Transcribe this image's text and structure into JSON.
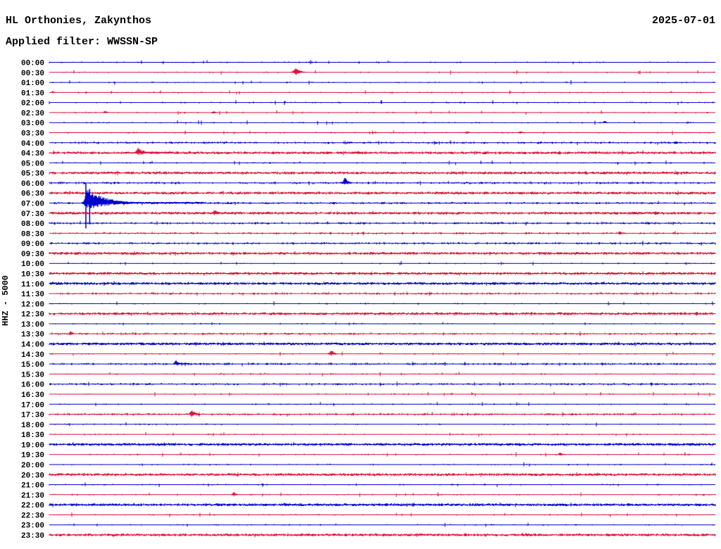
{
  "chart_data": {
    "type": "line",
    "variant": "helicorder-day-plot",
    "title": "HL Orthonies, Zakynthos",
    "date": "2025-07-01",
    "filter_label": "Applied filter: WWSSN-SP",
    "ylabel": "HHZ - 5000",
    "minutes_per_row": 30,
    "x_range_minutes": [
      0,
      30
    ],
    "rows_per_day": 48,
    "legend": "none",
    "grid": "off",
    "colors": {
      "blue": "#0000CD",
      "red": "#DC143C",
      "background": "#FFFFFF",
      "text": "#000000"
    },
    "rows": [
      {
        "label": "00:00",
        "color": "blue",
        "noise": 1,
        "events": []
      },
      {
        "label": "00:30",
        "color": "red",
        "noise": 1,
        "events": [
          {
            "t": 11.1,
            "amp": 8,
            "w": 3,
            "decay": 6
          }
        ]
      },
      {
        "label": "01:00",
        "color": "blue",
        "noise": 1,
        "events": []
      },
      {
        "label": "01:30",
        "color": "red",
        "noise": 1,
        "events": [
          {
            "t": 0.15,
            "amp": 3,
            "w": 1,
            "decay": 2
          },
          {
            "t": 28.0,
            "amp": 2,
            "w": 1,
            "decay": 2
          }
        ]
      },
      {
        "label": "02:00",
        "color": "blue",
        "noise": 1,
        "events": []
      },
      {
        "label": "02:30",
        "color": "red",
        "noise": 1,
        "events": [
          {
            "t": 2.5,
            "amp": 3,
            "w": 2,
            "decay": 4
          },
          {
            "t": 7.4,
            "amp": 3,
            "w": 2,
            "decay": 4
          }
        ]
      },
      {
        "label": "03:00",
        "color": "blue",
        "noise": 1,
        "events": [
          {
            "t": 25.0,
            "amp": 3,
            "w": 2,
            "decay": 4
          }
        ]
      },
      {
        "label": "03:30",
        "color": "red",
        "noise": 1,
        "events": [
          {
            "t": 18.8,
            "amp": 3,
            "w": 2,
            "decay": 4
          },
          {
            "t": 21.2,
            "amp": 3,
            "w": 2,
            "decay": 4
          }
        ]
      },
      {
        "label": "04:00",
        "color": "blue",
        "noise": 2,
        "events": []
      },
      {
        "label": "04:30",
        "color": "red",
        "noise": 3,
        "events": [
          {
            "t": 4.0,
            "amp": 8,
            "w": 3,
            "decay": 8,
            "tail": 50
          }
        ]
      },
      {
        "label": "05:00",
        "color": "blue",
        "noise": 1,
        "events": []
      },
      {
        "label": "05:30",
        "color": "red",
        "noise": 3,
        "events": []
      },
      {
        "label": "06:00",
        "color": "blue",
        "noise": 2,
        "events": [
          {
            "t": 13.3,
            "amp": 9,
            "w": 2,
            "decay": 5
          }
        ]
      },
      {
        "label": "06:30",
        "color": "red",
        "noise": 3,
        "events": []
      },
      {
        "label": "07:00",
        "color": "blue",
        "noise": 2,
        "events": [
          {
            "t": 1.65,
            "amp": 21,
            "w": 2,
            "decay": 28,
            "tail": 168,
            "spikes": [
              {
                "t": 1.65,
                "up": 28,
                "down": 36
              },
              {
                "t": 1.82,
                "up": 20,
                "down": 30
              }
            ]
          }
        ]
      },
      {
        "label": "07:30",
        "color": "red",
        "noise": 3,
        "events": [
          {
            "t": 7.45,
            "amp": 5,
            "w": 3,
            "decay": 6
          }
        ]
      },
      {
        "label": "08:00",
        "color": "blue",
        "noise": 2,
        "events": []
      },
      {
        "label": "08:30",
        "color": "red",
        "noise": 2,
        "events": [
          {
            "t": 25.7,
            "amp": 4,
            "w": 2,
            "decay": 4
          }
        ]
      },
      {
        "label": "09:00",
        "color": "blue",
        "noise": 2,
        "events": []
      },
      {
        "label": "09:30",
        "color": "red",
        "noise": 3,
        "events": []
      },
      {
        "label": "10:00",
        "color": "blue",
        "noise": 1,
        "events": []
      },
      {
        "label": "10:30",
        "color": "red",
        "noise": 3,
        "events": []
      },
      {
        "label": "11:00",
        "color": "blue",
        "noise": 3,
        "events": []
      },
      {
        "label": "11:30",
        "color": "red",
        "noise": 2,
        "events": [
          {
            "t": 4.6,
            "amp": 2,
            "w": 1,
            "decay": 2
          },
          {
            "t": 29.2,
            "amp": 3,
            "w": 1,
            "decay": 2
          }
        ]
      },
      {
        "label": "12:00",
        "color": "blue",
        "noise": 1,
        "events": []
      },
      {
        "label": "12:30",
        "color": "red",
        "noise": 3,
        "events": []
      },
      {
        "label": "13:00",
        "color": "blue",
        "noise": 1,
        "events": [
          {
            "t": 13.7,
            "amp": 2,
            "w": 1,
            "decay": 2
          }
        ]
      },
      {
        "label": "13:30",
        "color": "red",
        "noise": 2,
        "events": [
          {
            "t": 0.95,
            "amp": 5,
            "w": 2,
            "decay": 4
          }
        ]
      },
      {
        "label": "14:00",
        "color": "blue",
        "noise": 3,
        "events": []
      },
      {
        "label": "14:30",
        "color": "red",
        "noise": 1,
        "events": [
          {
            "t": 12.7,
            "amp": 6,
            "w": 3,
            "decay": 5
          }
        ]
      },
      {
        "label": "15:00",
        "color": "blue",
        "noise": 2,
        "events": [
          {
            "t": 5.7,
            "amp": 6,
            "w": 2,
            "decay": 5,
            "tail": 20
          }
        ]
      },
      {
        "label": "15:30",
        "color": "red",
        "noise": 1,
        "events": [
          {
            "t": 9.7,
            "amp": 2,
            "w": 1,
            "decay": 2
          }
        ]
      },
      {
        "label": "16:00",
        "color": "blue",
        "noise": 2,
        "events": []
      },
      {
        "label": "16:30",
        "color": "red",
        "noise": 1,
        "events": []
      },
      {
        "label": "17:00",
        "color": "blue",
        "noise": 1,
        "events": []
      },
      {
        "label": "17:30",
        "color": "red",
        "noise": 2,
        "events": [
          {
            "t": 6.4,
            "amp": 8,
            "w": 2,
            "decay": 5
          }
        ]
      },
      {
        "label": "18:00",
        "color": "blue",
        "noise": 1,
        "events": []
      },
      {
        "label": "18:30",
        "color": "red",
        "noise": 1,
        "events": [
          {
            "t": 18.6,
            "amp": 2,
            "w": 1,
            "decay": 2
          },
          {
            "t": 23.3,
            "amp": 2,
            "w": 1,
            "decay": 2
          }
        ]
      },
      {
        "label": "19:00",
        "color": "blue",
        "noise": 3,
        "events": []
      },
      {
        "label": "19:30",
        "color": "red",
        "noise": 1,
        "events": [
          {
            "t": 23.0,
            "amp": 4,
            "w": 2,
            "decay": 4
          }
        ]
      },
      {
        "label": "20:00",
        "color": "blue",
        "noise": 1,
        "events": []
      },
      {
        "label": "20:30",
        "color": "red",
        "noise": 3,
        "events": [
          {
            "t": 8.1,
            "amp": 3,
            "w": 2,
            "decay": 3
          }
        ]
      },
      {
        "label": "21:00",
        "color": "blue",
        "noise": 1,
        "events": []
      },
      {
        "label": "21:30",
        "color": "red",
        "noise": 1,
        "events": [
          {
            "t": 8.3,
            "amp": 5,
            "w": 2,
            "decay": 4
          }
        ]
      },
      {
        "label": "22:00",
        "color": "blue",
        "noise": 3,
        "events": [
          {
            "t": 10.6,
            "amp": 4,
            "w": 2,
            "decay": 4
          }
        ]
      },
      {
        "label": "22:30",
        "color": "red",
        "noise": 1,
        "events": []
      },
      {
        "label": "23:00",
        "color": "blue",
        "noise": 1,
        "events": [
          {
            "t": 19.9,
            "amp": 2,
            "w": 1,
            "decay": 2
          }
        ]
      },
      {
        "label": "23:30",
        "color": "red",
        "noise": 3,
        "events": []
      }
    ]
  }
}
